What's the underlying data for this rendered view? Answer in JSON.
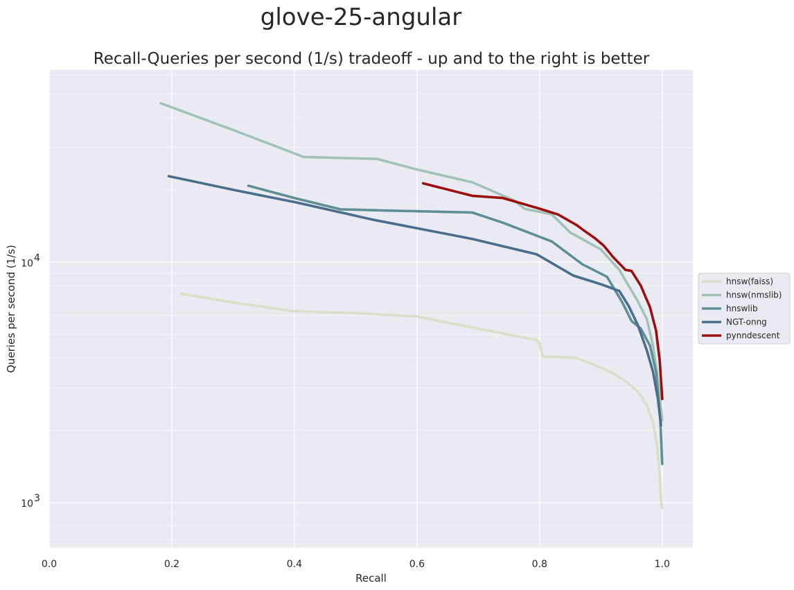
{
  "suptitle": "glove-25-angular",
  "chart_data": {
    "type": "line",
    "title": "Recall-Queries per second (1/s) tradeoff - up and to the right is better",
    "xlabel": "Recall",
    "ylabel": "Queries per second (1/s)",
    "xlim": [
      0.0,
      1.05
    ],
    "ylim": [
      650,
      63000
    ],
    "yscale": "log",
    "grid": true,
    "legend_position": "center-right-outside",
    "x_ticks": [
      0.0,
      0.2,
      0.4,
      0.6,
      0.8,
      1.0
    ],
    "x_tick_labels": [
      "0.0",
      "0.2",
      "0.4",
      "0.6",
      "0.8",
      "1.0"
    ],
    "y_ticks": [
      1000,
      10000
    ],
    "y_tick_labels": [
      {
        "base": "10",
        "exp": "3"
      },
      {
        "base": "10",
        "exp": "4"
      }
    ],
    "series": [
      {
        "name": "hnsw(faiss)",
        "color": "#d7e0c8",
        "x": [
          0.215,
          0.3,
          0.4,
          0.5,
          0.6,
          0.65,
          0.7,
          0.75,
          0.795,
          0.8,
          0.805,
          0.82,
          0.86,
          0.9,
          0.92,
          0.94,
          0.96,
          0.975,
          0.985,
          0.992,
          0.996,
          0.999
        ],
        "y": [
          7400,
          6800,
          6250,
          6150,
          5950,
          5600,
          5300,
          5000,
          4750,
          4600,
          4050,
          4050,
          4000,
          3650,
          3450,
          3200,
          2900,
          2550,
          2150,
          1700,
          1300,
          950
        ]
      },
      {
        "name": "hnsw(nmslib)",
        "color": "#a2c2b8",
        "x": [
          0.182,
          0.3,
          0.415,
          0.535,
          0.6,
          0.69,
          0.76,
          0.775,
          0.82,
          0.85,
          0.9,
          0.93,
          0.96,
          0.975,
          0.985,
          0.992,
          0.997,
          1.0
        ],
        "y": [
          45800,
          35500,
          27400,
          26900,
          24300,
          21500,
          18000,
          16700,
          15800,
          13300,
          11300,
          9300,
          6900,
          5800,
          4500,
          3400,
          2600,
          2200
        ]
      },
      {
        "name": "hnswlib",
        "color": "#5f8f96",
        "x": [
          0.325,
          0.4,
          0.475,
          0.55,
          0.69,
          0.74,
          0.82,
          0.87,
          0.91,
          0.935,
          0.95,
          0.965,
          0.98,
          0.99,
          0.997,
          1.0
        ],
        "y": [
          20800,
          18500,
          16600,
          16400,
          16100,
          14600,
          12200,
          9800,
          8700,
          6800,
          5700,
          5300,
          4500,
          3500,
          2200,
          1450
        ]
      },
      {
        "name": "NGT-onng",
        "color": "#4a6e8a",
        "x": [
          0.195,
          0.3,
          0.4,
          0.53,
          0.69,
          0.795,
          0.855,
          0.9,
          0.93,
          0.945,
          0.96,
          0.975,
          0.985,
          0.993,
          0.998
        ],
        "y": [
          22800,
          20000,
          17800,
          15000,
          12500,
          10800,
          8800,
          8100,
          7600,
          6600,
          5500,
          4300,
          3500,
          2700,
          2100
        ]
      },
      {
        "name": "pynndescent",
        "color": "#9b0f0f",
        "x": [
          0.61,
          0.69,
          0.74,
          0.8,
          0.83,
          0.86,
          0.875,
          0.89,
          0.905,
          0.92,
          0.94,
          0.95,
          0.965,
          0.98,
          0.99,
          0.996,
          1.0
        ],
        "y": [
          21300,
          18900,
          18500,
          16700,
          15800,
          14300,
          13400,
          12600,
          11700,
          10500,
          9300,
          9200,
          8000,
          6500,
          5200,
          3900,
          2700
        ]
      }
    ]
  }
}
